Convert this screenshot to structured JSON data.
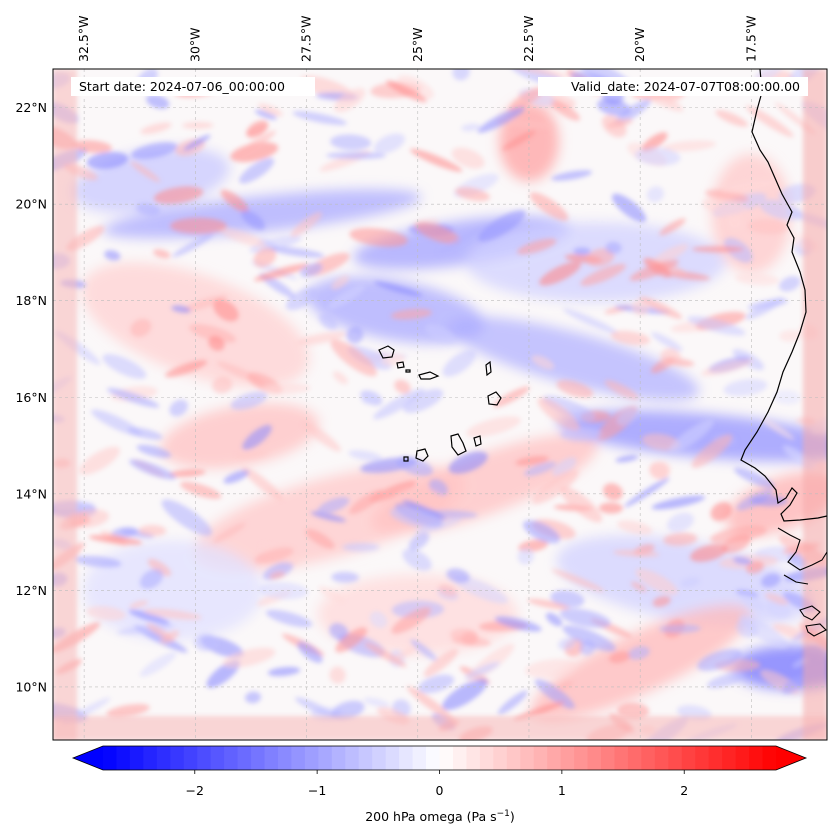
{
  "header": {
    "start_date": "Start date: 2024-07-06_00:00:00",
    "valid_date": "Valid_date: 2024-07-07T08:00:00.00"
  },
  "map": {
    "extent": {
      "lon_min": -33.2,
      "lon_max": -15.8,
      "lat_min": 8.9,
      "lat_max": 22.8
    },
    "lon_labels": [
      {
        "value": -32.5,
        "label": "32.5°W"
      },
      {
        "value": -30.0,
        "label": "30°W"
      },
      {
        "value": -27.5,
        "label": "27.5°W"
      },
      {
        "value": -25.0,
        "label": "25°W"
      },
      {
        "value": -22.5,
        "label": "22.5°W"
      },
      {
        "value": -20.0,
        "label": "20°W"
      },
      {
        "value": -17.5,
        "label": "17.5°W"
      }
    ],
    "lat_labels": [
      {
        "value": 22,
        "label": "22°N"
      },
      {
        "value": 20,
        "label": "20°N"
      },
      {
        "value": 18,
        "label": "18°N"
      },
      {
        "value": 16,
        "label": "16°N"
      },
      {
        "value": 14,
        "label": "14°N"
      },
      {
        "value": 12,
        "label": "12°N"
      },
      {
        "value": 10,
        "label": "10°N"
      }
    ],
    "gridlines": true
  },
  "colorbar": {
    "vmin": -2.75,
    "vmax": 2.75,
    "cmap": "bwr",
    "min_color": "#0000ff",
    "mid_color": "#ffffff",
    "max_color": "#ff0000",
    "ticks": [
      {
        "value": -2,
        "label": "−2"
      },
      {
        "value": -1,
        "label": "−1"
      },
      {
        "value": 0,
        "label": "0"
      },
      {
        "value": 1,
        "label": "1"
      },
      {
        "value": 2,
        "label": "2"
      }
    ],
    "label_main": "200 hPa omega (Pa s",
    "label_sup": "−1",
    "label_end": ")"
  }
}
